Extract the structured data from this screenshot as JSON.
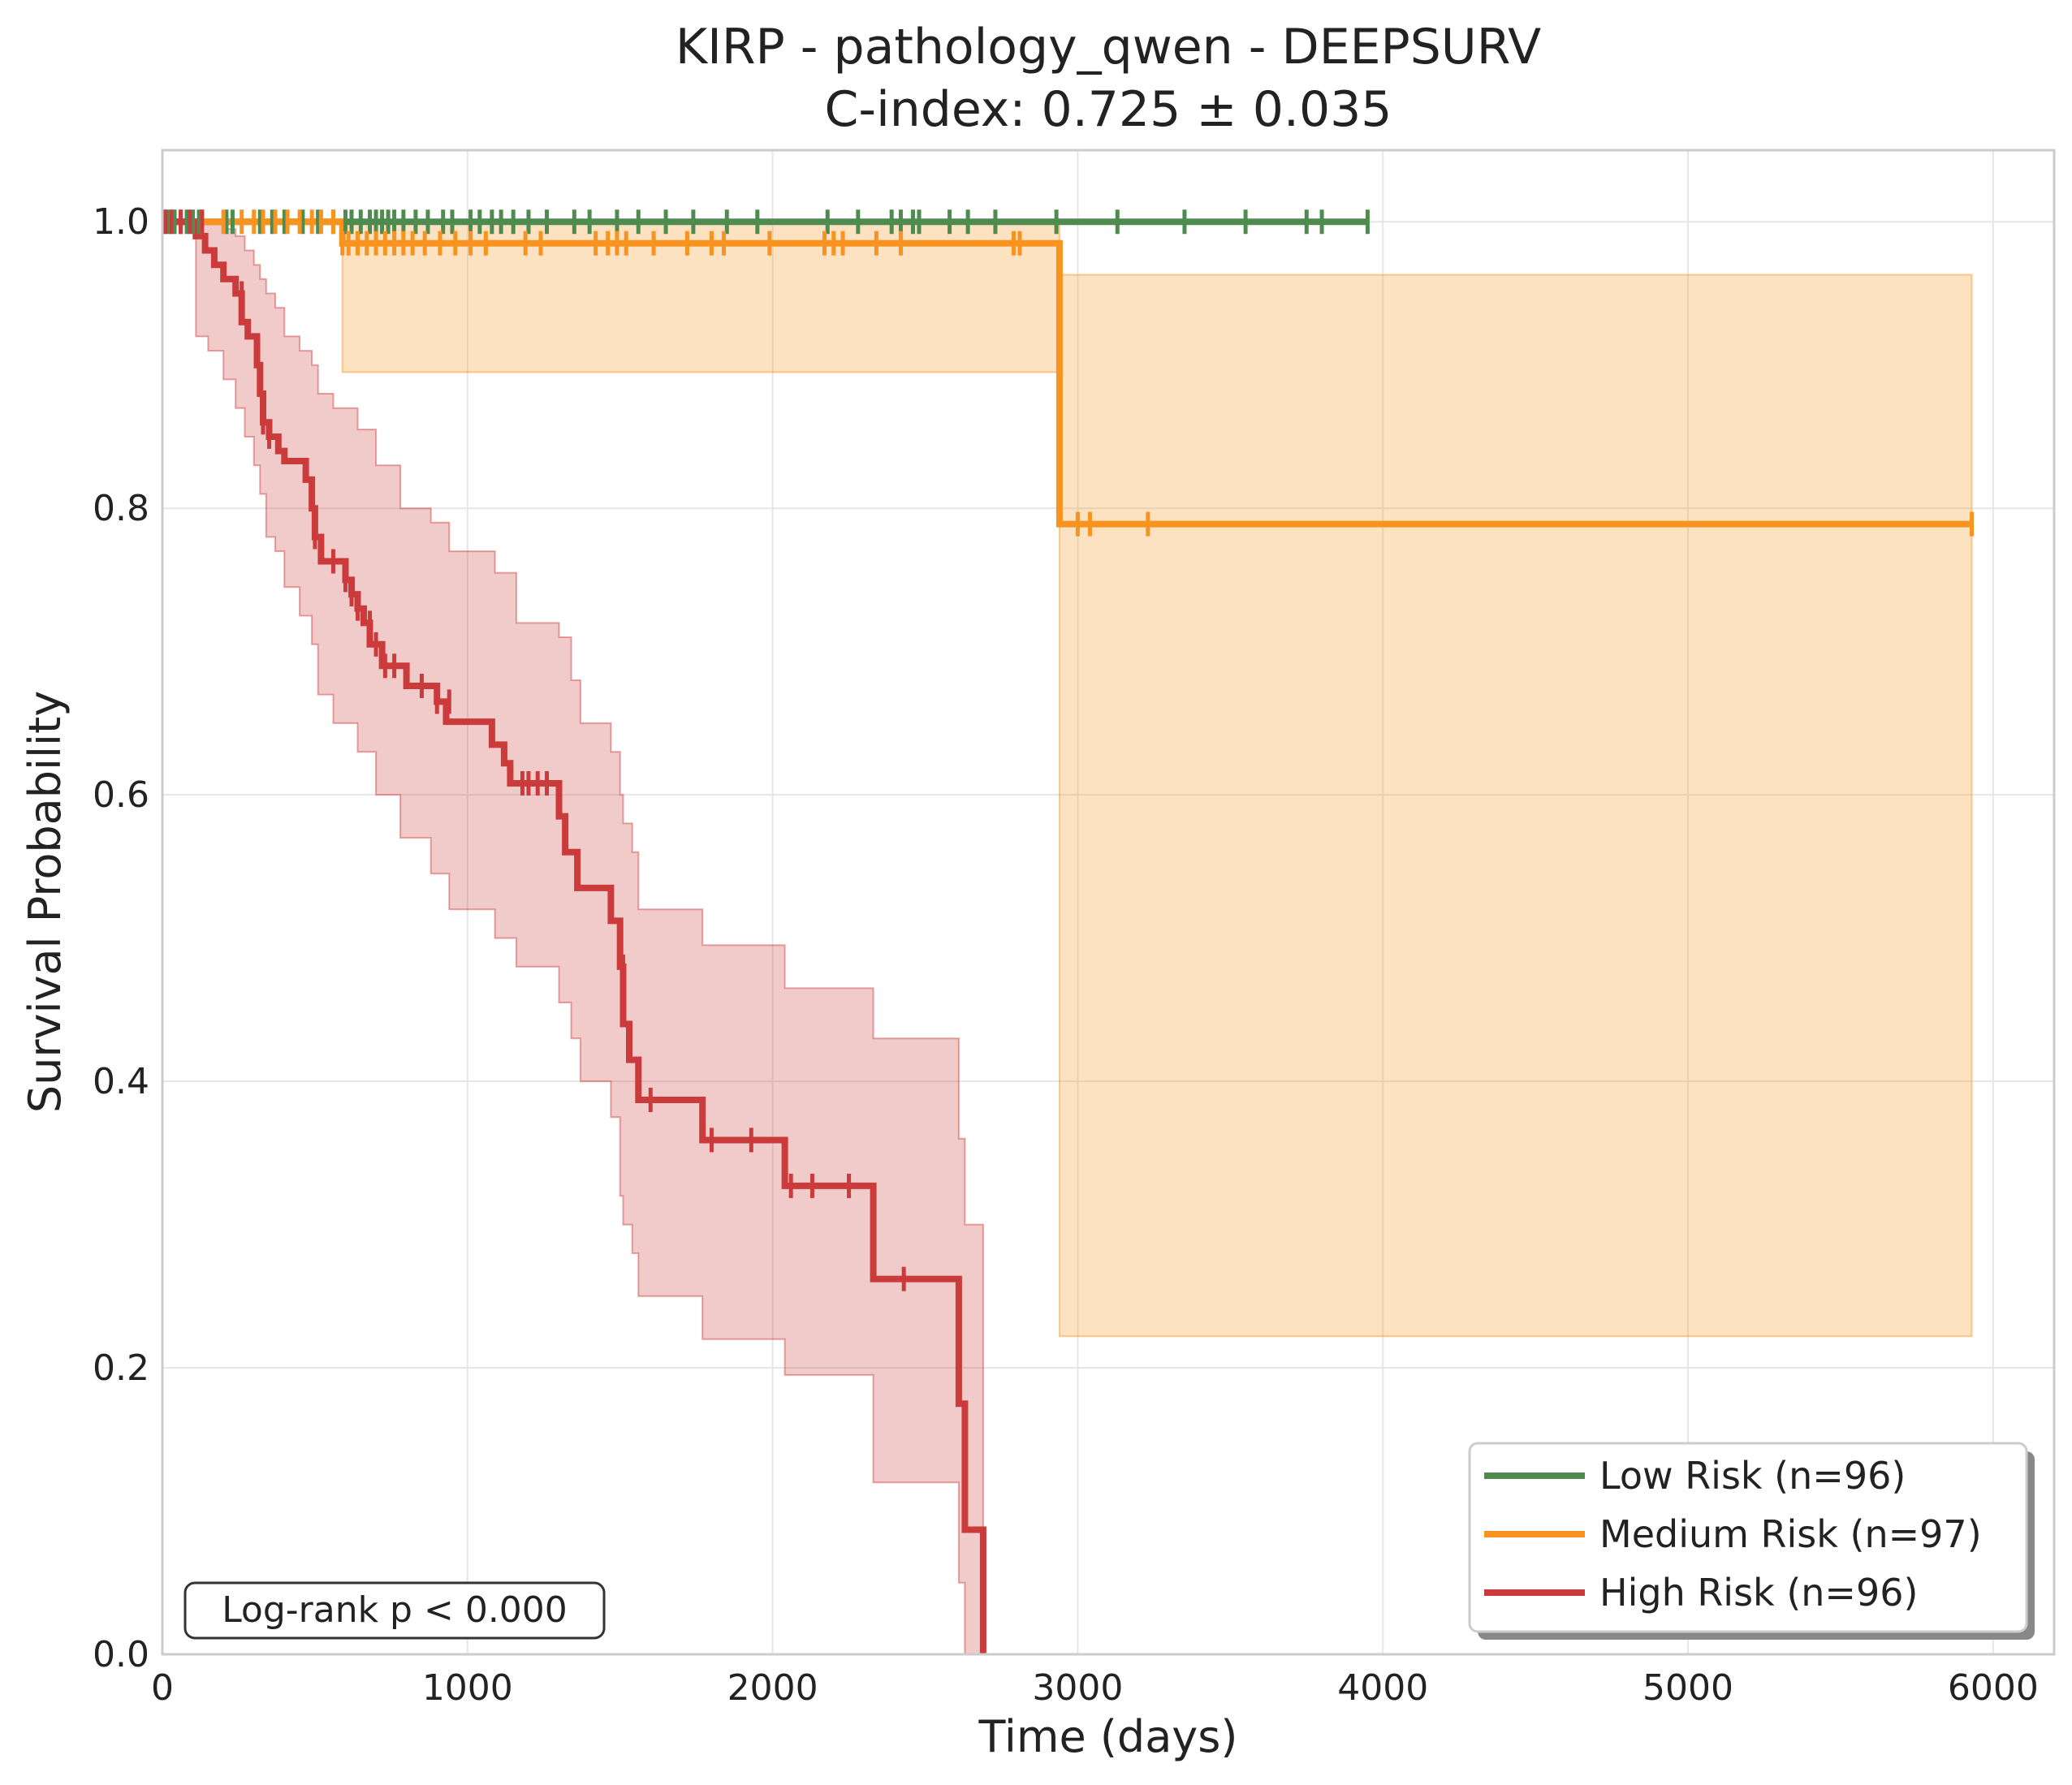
{
  "chart_data": {
    "type": "line",
    "subtype": "kaplan-meier",
    "title": "KIRP - pathology_qwen - DEEPSURV",
    "subtitle": "C-index: 0.725 ± 0.035",
    "xlabel": "Time (days)",
    "ylabel": "Survival Probability",
    "xlim": [
      0,
      6200
    ],
    "ylim": [
      0,
      1.05
    ],
    "x_ticks": [
      0,
      1000,
      2000,
      3000,
      4000,
      5000,
      6000
    ],
    "y_ticks": [
      0.0,
      0.2,
      0.4,
      0.6,
      0.8,
      1.0
    ],
    "x_tick_labels": [
      "0",
      "1000",
      "2000",
      "3000",
      "4000",
      "5000",
      "6000"
    ],
    "y_tick_labels": [
      "0.0",
      "0.2",
      "0.4",
      "0.6",
      "0.8",
      "1.0"
    ],
    "grid": true,
    "legend_position": "bottom-right",
    "annotation": "Log-rank p < 0.000",
    "series": [
      {
        "name": "Low Risk (n=96)",
        "color": "#4f8a4f",
        "steps": [
          [
            0,
            1.0
          ],
          [
            3950,
            1.0
          ]
        ],
        "ci": [],
        "censored": [
          [
            5,
            1.0
          ],
          [
            20,
            1.0
          ],
          [
            40,
            1.0
          ],
          [
            60,
            1.0
          ],
          [
            80,
            1.0
          ],
          [
            100,
            1.0
          ],
          [
            120,
            1.0
          ],
          [
            210,
            1.0
          ],
          [
            230,
            1.0
          ],
          [
            320,
            1.0
          ],
          [
            360,
            1.0
          ],
          [
            400,
            1.0
          ],
          [
            460,
            1.0
          ],
          [
            510,
            1.0
          ],
          [
            560,
            1.0
          ],
          [
            600,
            1.0
          ],
          [
            620,
            1.0
          ],
          [
            650,
            1.0
          ],
          [
            680,
            1.0
          ],
          [
            700,
            1.0
          ],
          [
            720,
            1.0
          ],
          [
            740,
            1.0
          ],
          [
            760,
            1.0
          ],
          [
            790,
            1.0
          ],
          [
            830,
            1.0
          ],
          [
            870,
            1.0
          ],
          [
            920,
            1.0
          ],
          [
            950,
            1.0
          ],
          [
            1010,
            1.0
          ],
          [
            1040,
            1.0
          ],
          [
            1080,
            1.0
          ],
          [
            1110,
            1.0
          ],
          [
            1150,
            1.0
          ],
          [
            1200,
            1.0
          ],
          [
            1260,
            1.0
          ],
          [
            1350,
            1.0
          ],
          [
            1400,
            1.0
          ],
          [
            1490,
            1.0
          ],
          [
            1560,
            1.0
          ],
          [
            1650,
            1.0
          ],
          [
            1740,
            1.0
          ],
          [
            1850,
            1.0
          ],
          [
            1950,
            1.0
          ],
          [
            2180,
            1.0
          ],
          [
            2280,
            1.0
          ],
          [
            2390,
            1.0
          ],
          [
            2420,
            1.0
          ],
          [
            2460,
            1.0
          ],
          [
            2480,
            1.0
          ],
          [
            2580,
            1.0
          ],
          [
            2640,
            1.0
          ],
          [
            2730,
            1.0
          ],
          [
            2930,
            1.0
          ],
          [
            3130,
            1.0
          ],
          [
            3350,
            1.0
          ],
          [
            3550,
            1.0
          ],
          [
            3750,
            1.0
          ],
          [
            3800,
            1.0
          ],
          [
            3950,
            1.0
          ]
        ]
      },
      {
        "name": "Medium Risk (n=97)",
        "color": "#f7931e",
        "steps": [
          [
            0,
            1.0
          ],
          [
            590,
            1.0
          ],
          [
            590,
            0.985
          ],
          [
            2940,
            0.985
          ],
          [
            2940,
            0.789
          ],
          [
            5930,
            0.789
          ]
        ],
        "ci": [
          [
            0,
            1.0,
            1.0
          ],
          [
            590,
            0.895,
            1.0
          ],
          [
            2940,
            0.222,
            0.963
          ],
          [
            5930,
            0.222,
            0.963
          ]
        ],
        "censored": [
          [
            30,
            1.0
          ],
          [
            130,
            1.0
          ],
          [
            200,
            1.0
          ],
          [
            260,
            1.0
          ],
          [
            300,
            1.0
          ],
          [
            330,
            1.0
          ],
          [
            370,
            1.0
          ],
          [
            410,
            1.0
          ],
          [
            450,
            1.0
          ],
          [
            490,
            1.0
          ],
          [
            520,
            1.0
          ],
          [
            560,
            1.0
          ],
          [
            590,
            0.985
          ],
          [
            610,
            0.985
          ],
          [
            640,
            0.985
          ],
          [
            670,
            0.985
          ],
          [
            700,
            0.985
          ],
          [
            730,
            0.985
          ],
          [
            760,
            0.985
          ],
          [
            790,
            0.985
          ],
          [
            820,
            0.985
          ],
          [
            860,
            0.985
          ],
          [
            910,
            0.985
          ],
          [
            960,
            0.985
          ],
          [
            1010,
            0.985
          ],
          [
            1060,
            0.985
          ],
          [
            1190,
            0.985
          ],
          [
            1240,
            0.985
          ],
          [
            1420,
            0.985
          ],
          [
            1460,
            0.985
          ],
          [
            1490,
            0.985
          ],
          [
            1520,
            0.985
          ],
          [
            1610,
            0.985
          ],
          [
            1720,
            0.985
          ],
          [
            1800,
            0.985
          ],
          [
            1840,
            0.985
          ],
          [
            1990,
            0.985
          ],
          [
            2170,
            0.985
          ],
          [
            2200,
            0.985
          ],
          [
            2230,
            0.985
          ],
          [
            2340,
            0.985
          ],
          [
            2420,
            0.985
          ],
          [
            2790,
            0.985
          ],
          [
            2810,
            0.985
          ],
          [
            3000,
            0.789
          ],
          [
            3040,
            0.789
          ],
          [
            3230,
            0.789
          ],
          [
            5930,
            0.789
          ]
        ]
      },
      {
        "name": "High Risk (n=96)",
        "color": "#cc3b3b",
        "steps": [
          [
            0,
            1.0
          ],
          [
            110,
            1.0
          ],
          [
            110,
            0.99
          ],
          [
            140,
            0.99
          ],
          [
            140,
            0.98
          ],
          [
            170,
            0.98
          ],
          [
            170,
            0.97
          ],
          [
            200,
            0.97
          ],
          [
            200,
            0.96
          ],
          [
            240,
            0.96
          ],
          [
            240,
            0.95
          ],
          [
            260,
            0.95
          ],
          [
            260,
            0.93
          ],
          [
            280,
            0.93
          ],
          [
            280,
            0.92
          ],
          [
            310,
            0.92
          ],
          [
            310,
            0.9
          ],
          [
            320,
            0.9
          ],
          [
            320,
            0.88
          ],
          [
            330,
            0.88
          ],
          [
            330,
            0.86
          ],
          [
            350,
            0.86
          ],
          [
            350,
            0.85
          ],
          [
            380,
            0.85
          ],
          [
            380,
            0.84
          ],
          [
            400,
            0.84
          ],
          [
            400,
            0.833
          ],
          [
            470,
            0.833
          ],
          [
            470,
            0.82
          ],
          [
            490,
            0.82
          ],
          [
            490,
            0.8
          ],
          [
            500,
            0.8
          ],
          [
            500,
            0.78
          ],
          [
            520,
            0.78
          ],
          [
            520,
            0.763
          ],
          [
            600,
            0.763
          ],
          [
            600,
            0.75
          ],
          [
            620,
            0.75
          ],
          [
            620,
            0.74
          ],
          [
            640,
            0.74
          ],
          [
            640,
            0.73
          ],
          [
            660,
            0.73
          ],
          [
            660,
            0.72
          ],
          [
            680,
            0.72
          ],
          [
            680,
            0.705
          ],
          [
            720,
            0.705
          ],
          [
            720,
            0.69
          ],
          [
            800,
            0.69
          ],
          [
            800,
            0.676
          ],
          [
            900,
            0.676
          ],
          [
            900,
            0.665
          ],
          [
            930,
            0.665
          ],
          [
            930,
            0.651
          ],
          [
            1080,
            0.651
          ],
          [
            1080,
            0.635
          ],
          [
            1120,
            0.635
          ],
          [
            1120,
            0.622
          ],
          [
            1140,
            0.622
          ],
          [
            1140,
            0.608
          ],
          [
            1300,
            0.608
          ],
          [
            1300,
            0.585
          ],
          [
            1320,
            0.585
          ],
          [
            1320,
            0.56
          ],
          [
            1360,
            0.56
          ],
          [
            1360,
            0.535
          ],
          [
            1470,
            0.535
          ],
          [
            1470,
            0.512
          ],
          [
            1500,
            0.512
          ],
          [
            1500,
            0.48
          ],
          [
            1510,
            0.48
          ],
          [
            1510,
            0.44
          ],
          [
            1530,
            0.44
          ],
          [
            1530,
            0.415
          ],
          [
            1560,
            0.415
          ],
          [
            1560,
            0.387
          ],
          [
            1770,
            0.387
          ],
          [
            1770,
            0.359
          ],
          [
            2040,
            0.359
          ],
          [
            2040,
            0.327
          ],
          [
            2330,
            0.327
          ],
          [
            2330,
            0.262
          ],
          [
            2610,
            0.262
          ],
          [
            2610,
            0.175
          ],
          [
            2630,
            0.175
          ],
          [
            2630,
            0.087
          ],
          [
            2690,
            0.087
          ],
          [
            2690,
            0.0
          ]
        ],
        "ci": [
          [
            0,
            1.0,
            1.0
          ],
          [
            110,
            0.92,
            1.0
          ],
          [
            150,
            0.91,
            1.0
          ],
          [
            200,
            0.89,
            0.995
          ],
          [
            240,
            0.87,
            0.99
          ],
          [
            270,
            0.85,
            0.98
          ],
          [
            300,
            0.83,
            0.97
          ],
          [
            320,
            0.81,
            0.96
          ],
          [
            340,
            0.78,
            0.95
          ],
          [
            370,
            0.77,
            0.94
          ],
          [
            400,
            0.745,
            0.92
          ],
          [
            450,
            0.725,
            0.91
          ],
          [
            490,
            0.705,
            0.9
          ],
          [
            510,
            0.67,
            0.88
          ],
          [
            560,
            0.65,
            0.87
          ],
          [
            640,
            0.63,
            0.855
          ],
          [
            700,
            0.6,
            0.83
          ],
          [
            780,
            0.57,
            0.8
          ],
          [
            880,
            0.545,
            0.79
          ],
          [
            940,
            0.52,
            0.77
          ],
          [
            1090,
            0.5,
            0.755
          ],
          [
            1160,
            0.48,
            0.72
          ],
          [
            1300,
            0.455,
            0.71
          ],
          [
            1340,
            0.43,
            0.68
          ],
          [
            1370,
            0.4,
            0.65
          ],
          [
            1470,
            0.375,
            0.63
          ],
          [
            1500,
            0.32,
            0.6
          ],
          [
            1510,
            0.3,
            0.58
          ],
          [
            1540,
            0.28,
            0.56
          ],
          [
            1560,
            0.25,
            0.52
          ],
          [
            1770,
            0.22,
            0.495
          ],
          [
            2040,
            0.195,
            0.465
          ],
          [
            2330,
            0.12,
            0.43
          ],
          [
            2610,
            0.05,
            0.36
          ],
          [
            2630,
            0.0,
            0.3
          ],
          [
            2690,
            0.0,
            0.3
          ]
        ],
        "censored": [
          [
            10,
            1.0
          ],
          [
            30,
            1.0
          ],
          [
            60,
            1.0
          ],
          [
            90,
            1.0
          ],
          [
            130,
            1.0
          ],
          [
            260,
            0.95
          ],
          [
            330,
            0.86
          ],
          [
            350,
            0.85
          ],
          [
            500,
            0.78
          ],
          [
            560,
            0.763
          ],
          [
            600,
            0.75
          ],
          [
            620,
            0.74
          ],
          [
            640,
            0.73
          ],
          [
            680,
            0.72
          ],
          [
            700,
            0.705
          ],
          [
            730,
            0.69
          ],
          [
            760,
            0.69
          ],
          [
            850,
            0.676
          ],
          [
            900,
            0.665
          ],
          [
            940,
            0.665
          ],
          [
            1180,
            0.608
          ],
          [
            1200,
            0.608
          ],
          [
            1230,
            0.608
          ],
          [
            1260,
            0.608
          ],
          [
            1510,
            0.48
          ],
          [
            1600,
            0.387
          ],
          [
            1800,
            0.359
          ],
          [
            1930,
            0.359
          ],
          [
            2060,
            0.327
          ],
          [
            2130,
            0.327
          ],
          [
            2250,
            0.327
          ],
          [
            2430,
            0.262
          ]
        ]
      }
    ]
  }
}
